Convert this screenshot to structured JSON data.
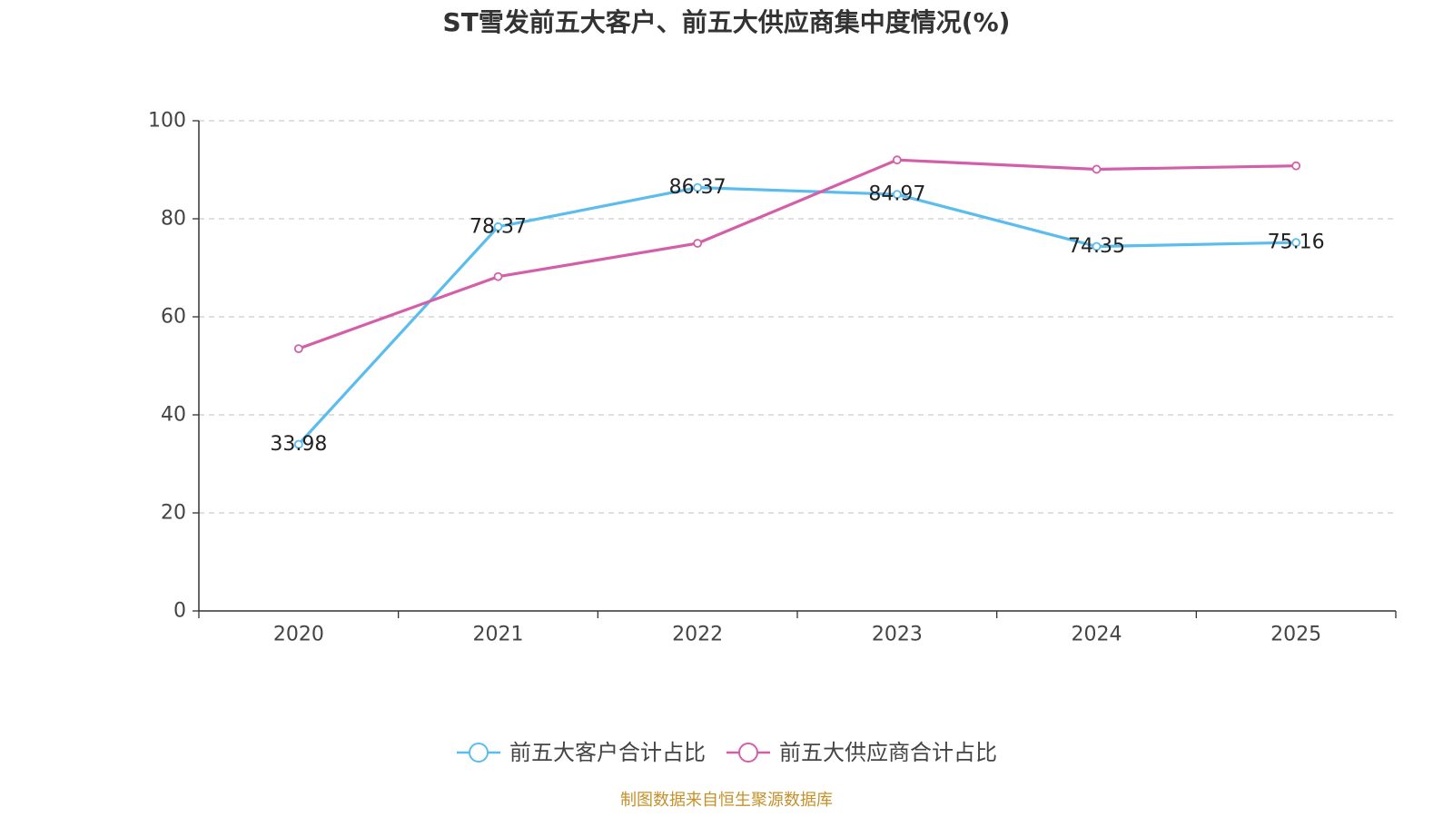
{
  "source": "制图数据来自恒生聚源数据库",
  "colors": {
    "axis": "#333333",
    "grid": "#cccccc",
    "source": "#c4912a"
  },
  "chart_data": {
    "type": "line",
    "title": "ST雪发前五大客户、前五大供应商集中度情况(%)",
    "xlabel": "",
    "ylabel": "",
    "categories": [
      "2020",
      "2021",
      "2022",
      "2023",
      "2024",
      "2025"
    ],
    "ylim": [
      0,
      100
    ],
    "yticks": [
      0,
      20,
      40,
      60,
      80,
      100
    ],
    "grid": true,
    "legend_position": "bottom",
    "series": [
      {
        "name": "前五大客户合计占比",
        "color": "#5bbcee",
        "values": [
          33.98,
          78.37,
          86.37,
          84.97,
          74.35,
          75.16
        ],
        "data_labels": [
          "33.98",
          "78.37",
          "86.37",
          "84.97",
          "74.35",
          "75.16"
        ]
      },
      {
        "name": "前五大供应商合计占比",
        "color": "#d45fa8",
        "values": [
          53.5,
          68.2,
          75.0,
          92.0,
          90.1,
          90.8
        ],
        "data_labels": []
      }
    ]
  }
}
